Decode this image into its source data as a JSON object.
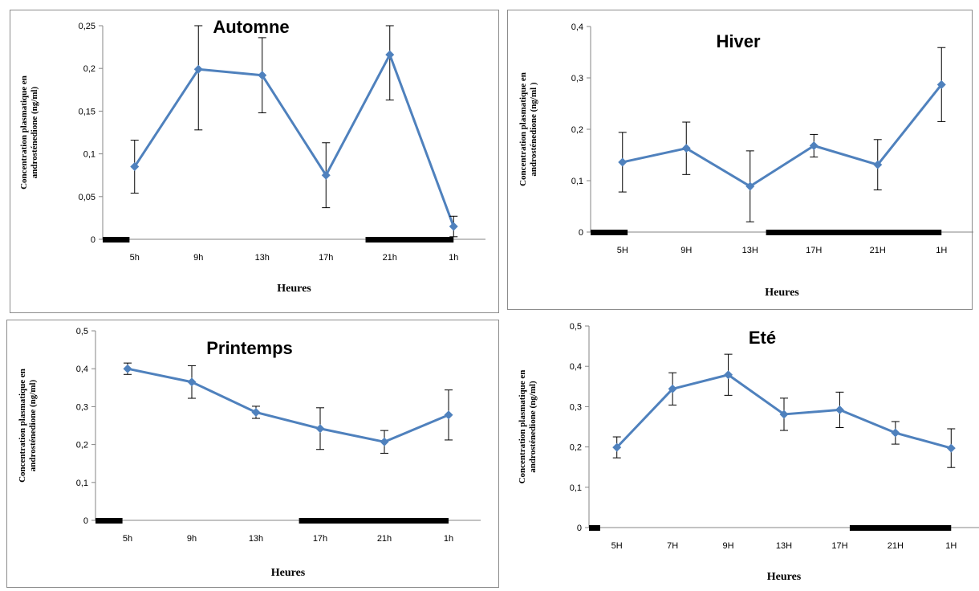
{
  "corner_text": "",
  "chart_data": [
    {
      "type": "line",
      "title": "Automne",
      "xlabel": "Heures",
      "ylabel": "Concentration plasmatique en androsténedione (ng/ml)",
      "categories": [
        "5h",
        "9h",
        "13h",
        "17h",
        "21h",
        "1h"
      ],
      "series": [
        {
          "values": [
            0.085,
            0.199,
            0.192,
            0.075,
            0.216,
            0.015
          ],
          "errors": [
            0.031,
            0.071,
            0.044,
            0.038,
            0.053,
            0.012
          ]
        }
      ],
      "ylim": [
        0,
        0.25
      ],
      "yticks": [
        "0",
        "0,05",
        "0,1",
        "0,15",
        "0,2",
        "0,25"
      ],
      "dark_periods": [
        [
          0,
          0.42
        ],
        [
          4.12,
          5.5
        ]
      ],
      "color": "#4f81bd"
    },
    {
      "type": "line",
      "title": "Hiver",
      "xlabel": "Heures",
      "ylabel": "Concentration plasmatique en androsténedione (ng/ml )",
      "categories": [
        "5H",
        "9H",
        "13H",
        "17H",
        "21H",
        "1H"
      ],
      "series": [
        {
          "values": [
            0.136,
            0.163,
            0.089,
            0.168,
            0.131,
            0.287
          ],
          "errors": [
            0.058,
            0.051,
            0.069,
            0.022,
            0.049,
            0.072
          ]
        }
      ],
      "ylim": [
        0,
        0.4
      ],
      "yticks": [
        "0",
        "0,1",
        "0,2",
        "0,3",
        "0,4"
      ],
      "dark_periods": [
        [
          0,
          0.58
        ],
        [
          2.75,
          5.5
        ]
      ],
      "color": "#4f81bd"
    },
    {
      "type": "line",
      "title": "Printemps",
      "xlabel": "Heures",
      "ylabel": "Concentration plasmatique en androsténedione (ng/ml)",
      "categories": [
        "5h",
        "9h",
        "13h",
        "17h",
        "21h",
        "1h"
      ],
      "series": [
        {
          "values": [
            0.4,
            0.365,
            0.285,
            0.242,
            0.207,
            0.278
          ],
          "errors": [
            0.015,
            0.043,
            0.016,
            0.055,
            0.03,
            0.066
          ]
        }
      ],
      "ylim": [
        0,
        0.5
      ],
      "yticks": [
        "0",
        "0,1",
        "0,2",
        "0,3",
        "0,4",
        "0,5"
      ],
      "dark_periods": [
        [
          0,
          0.42
        ],
        [
          3.17,
          5.5
        ]
      ],
      "color": "#4f81bd"
    },
    {
      "type": "line",
      "title": "Eté",
      "xlabel": "Heures",
      "ylabel": "Concentration plasmatique en androsténedione (ng/ml)",
      "categories": [
        "5H",
        "7H",
        "9H",
        "13H",
        "17H",
        "21H",
        "1H"
      ],
      "series": [
        {
          "values": [
            0.199,
            0.344,
            0.379,
            0.281,
            0.292,
            0.235,
            0.197
          ],
          "errors": [
            0.026,
            0.04,
            0.051,
            0.04,
            0.044,
            0.028,
            0.048
          ]
        }
      ],
      "ylim": [
        0,
        0.5
      ],
      "yticks": [
        "0",
        "0,1",
        "0,2",
        "0,3",
        "0,4",
        "0,5"
      ],
      "dark_periods": [
        [
          0,
          0.2
        ],
        [
          4.68,
          6.5
        ]
      ],
      "color": "#4f81bd"
    }
  ]
}
